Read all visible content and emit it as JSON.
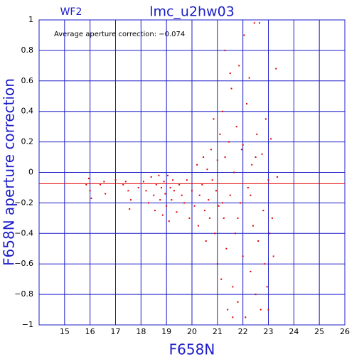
{
  "chart_data": {
    "type": "scatter",
    "title": "lmc_u2hw03",
    "label": "WF2",
    "annotation": "Average aperture correction: −0.074",
    "average": -0.074,
    "average_color": "#e00000",
    "xlabel": "F658N",
    "ylabel": "F658N aperture correction",
    "color": "#e00000",
    "grid": true,
    "xlim": [
      14,
      26
    ],
    "ylim": [
      -1,
      1
    ],
    "xticks": [
      15,
      16,
      17,
      18,
      19,
      20,
      21,
      22,
      23,
      24,
      25,
      26
    ],
    "yticks": [
      {
        "value": -1,
        "label": "−1"
      },
      {
        "value": -0.8,
        "label": "−0.8"
      },
      {
        "value": -0.6,
        "label": "−0.6"
      },
      {
        "value": -0.4,
        "label": "−0.4"
      },
      {
        "value": -0.2,
        "label": "−0.2"
      },
      0,
      0.2,
      0.4,
      0.6,
      0.8,
      1
    ],
    "x": [
      15.85,
      15.95,
      16.0,
      16.05,
      16.4,
      16.55,
      16.6,
      17.0,
      17.3,
      17.4,
      17.5,
      17.6,
      17.55,
      17.9,
      18.1,
      18.2,
      18.3,
      18.4,
      18.5,
      18.55,
      18.6,
      18.7,
      18.75,
      18.8,
      18.85,
      18.9,
      18.95,
      19.0,
      19.05,
      19.1,
      19.15,
      19.2,
      19.25,
      19.3,
      19.4,
      19.5,
      19.6,
      19.7,
      19.8,
      19.9,
      20.0,
      20.1,
      20.2,
      20.25,
      20.3,
      20.4,
      20.45,
      20.5,
      20.55,
      20.6,
      20.65,
      20.7,
      20.75,
      20.8,
      20.85,
      20.9,
      20.95,
      21.0,
      21.0,
      21.05,
      21.1,
      21.15,
      21.2,
      21.25,
      21.3,
      21.35,
      21.4,
      21.45,
      21.5,
      21.55,
      21.6,
      21.65,
      21.7,
      21.75,
      21.8,
      21.85,
      21.9,
      21.95,
      22.0,
      22.05,
      22.1,
      22.15,
      22.2,
      22.25,
      22.3,
      22.35,
      22.4,
      22.45,
      22.5,
      22.55,
      22.6,
      22.65,
      22.7,
      22.75,
      22.8,
      22.85,
      22.9,
      22.95,
      23.0,
      23.0,
      23.05,
      23.1,
      23.15,
      23.2,
      23.3,
      23.35,
      21.3,
      21.6,
      22.0,
      21.8,
      21.2,
      22.3,
      22.5,
      21.5
    ],
    "values": [
      -0.08,
      -0.04,
      -0.12,
      -0.17,
      -0.08,
      -0.06,
      -0.14,
      -0.05,
      -0.08,
      -0.06,
      -0.12,
      -0.18,
      -0.24,
      -0.1,
      -0.06,
      -0.12,
      -0.2,
      -0.03,
      -0.15,
      -0.25,
      -0.08,
      -0.02,
      -0.18,
      -0.1,
      -0.28,
      -0.06,
      -0.14,
      -0.22,
      -0.02,
      -0.32,
      -0.1,
      -0.18,
      -0.05,
      -0.12,
      -0.26,
      -0.08,
      -0.15,
      -0.2,
      -0.05,
      -0.3,
      -0.12,
      -0.22,
      0.05,
      -0.35,
      -0.15,
      -0.08,
      0.1,
      -0.25,
      -0.45,
      0.02,
      -0.18,
      -0.3,
      0.15,
      -0.05,
      0.35,
      -0.4,
      -0.12,
      0.08,
      -0.6,
      -0.22,
      0.25,
      -0.7,
      0.4,
      -0.3,
      0.1,
      -0.5,
      -0.9,
      0.2,
      -0.15,
      0.55,
      -0.75,
      0.0,
      -0.4,
      0.3,
      -0.85,
      0.7,
      -0.2,
      0.15,
      -0.55,
      0.9,
      -0.95,
      0.45,
      -0.1,
      0.62,
      -0.65,
      0.05,
      -0.35,
      0.98,
      -0.8,
      0.25,
      -0.45,
      0.98,
      -0.9,
      0.12,
      -0.25,
      -0.6,
      0.35,
      -0.75,
      -0.05,
      -0.9,
      -0.4,
      0.22,
      -0.3,
      -0.55,
      0.68,
      -0.03,
      0.8,
      -0.95,
      0.18,
      -0.3,
      -0.2,
      -0.15,
      0.1,
      0.65
    ]
  }
}
